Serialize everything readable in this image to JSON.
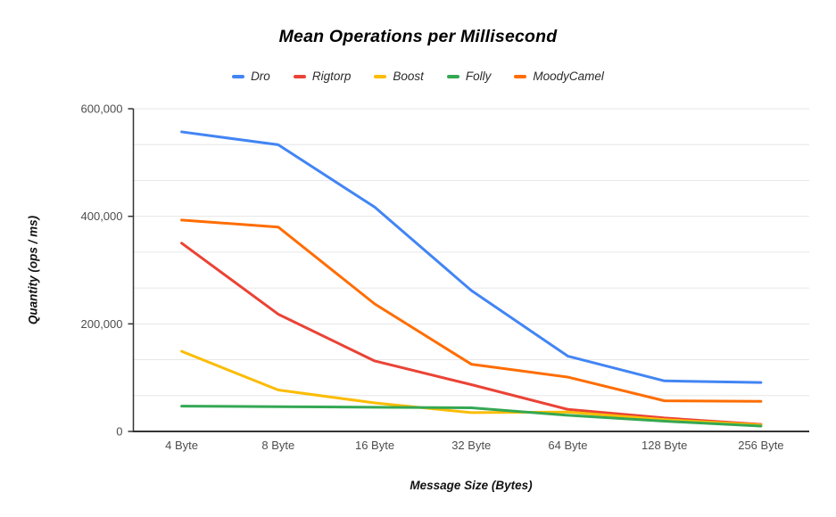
{
  "chart_data": {
    "type": "line",
    "title": "Mean Operations per Millisecond",
    "xlabel": "Message Size (Bytes)",
    "ylabel": "Quantity (ops / ms)",
    "categories": [
      "4 Byte",
      "8 Byte",
      "16 Byte",
      "32 Byte",
      "64 Byte",
      "128 Byte",
      "256 Byte"
    ],
    "series": [
      {
        "name": "Dro",
        "color": "#4285F4",
        "values": [
          557000,
          533000,
          417000,
          262000,
          140000,
          94000,
          91000
        ]
      },
      {
        "name": "Rigtorp",
        "color": "#EA4335",
        "values": [
          350000,
          218000,
          131000,
          87000,
          41000,
          25000,
          13000
        ]
      },
      {
        "name": "Boost",
        "color": "#FBBC04",
        "values": [
          149000,
          77000,
          53000,
          35000,
          36000,
          22000,
          12000
        ]
      },
      {
        "name": "Folly",
        "color": "#34A853",
        "values": [
          47000,
          46000,
          45000,
          44000,
          30000,
          19000,
          10000
        ]
      },
      {
        "name": "MoodyCamel",
        "color": "#FF6D01",
        "values": [
          393000,
          380000,
          237000,
          125000,
          101000,
          57000,
          56000
        ]
      }
    ],
    "ylim": [
      0,
      600000
    ],
    "y_ticks": [
      {
        "value": 0,
        "label": "0"
      },
      {
        "value": 200000,
        "label": "200,000"
      },
      {
        "value": 400000,
        "label": "400,000"
      },
      {
        "value": 600000,
        "label": "600,000"
      }
    ],
    "minor_gridline_divisions": 9,
    "grid": true,
    "legend_position": "top",
    "colors": {
      "gridline": "#e6e6e6",
      "axis": "#333333",
      "tick_text": "#4d4d4d",
      "background": "#ffffff"
    }
  }
}
